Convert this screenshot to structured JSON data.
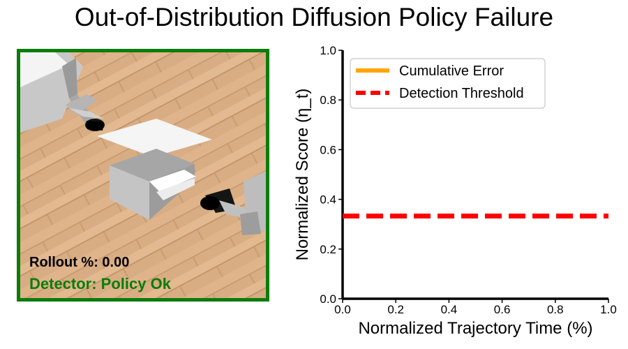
{
  "title": "Out-of-Distribution Diffusion Policy Failure",
  "rollout": {
    "status_label": "Rollout %: 0.00",
    "detector_label": "Detector: Policy Ok",
    "frame_border_color": "#0a7d0a",
    "detector_color": "#0a7d0a"
  },
  "chart_data": {
    "type": "line",
    "xlabel": "Normalized Trajectory Time (%)",
    "ylabel": "Normalized Score (η_t)",
    "xlim": [
      0,
      1
    ],
    "ylim": [
      0,
      1
    ],
    "xticks": [
      0.0,
      0.2,
      0.4,
      0.6,
      0.8,
      1.0
    ],
    "yticks": [
      0.0,
      0.2,
      0.4,
      0.6,
      0.8,
      1.0
    ],
    "grid": false,
    "legend_position": "top-left",
    "series": [
      {
        "name": "Cumulative Error",
        "color": "#ffa500",
        "style": "solid",
        "x": [],
        "y": []
      },
      {
        "name": "Detection Threshold",
        "color": "#ff0000",
        "style": "dashed",
        "x": [
          0,
          1
        ],
        "y": [
          0.333,
          0.333
        ]
      }
    ]
  }
}
